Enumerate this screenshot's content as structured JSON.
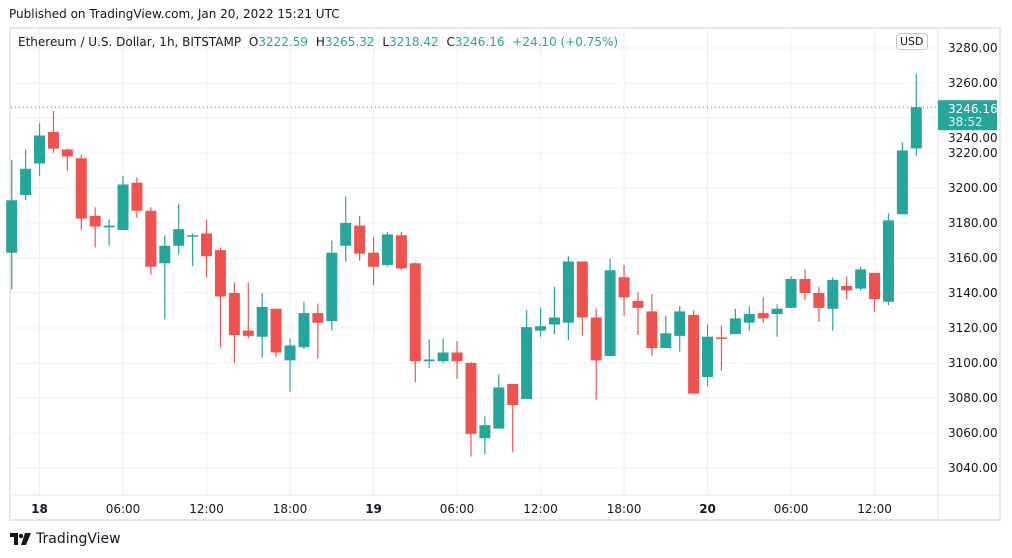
{
  "published": "Published on TradingView.com, Jan 20, 2022 15:21 UTC",
  "legend": {
    "symbol": "Ethereum / U.S. Dollar, 1h, BITSTAMP",
    "o_label": "O",
    "o": "3222.59",
    "h_label": "H",
    "h": "3265.32",
    "l_label": "L",
    "l": "3218.42",
    "c_label": "C",
    "c": "3246.16",
    "change": "+24.10 (+0.75%)"
  },
  "currency": "USD",
  "last_price": {
    "price": "3246.16",
    "countdown": "38:52"
  },
  "footer": {
    "brand": "TradingView"
  },
  "colors": {
    "up": "#26a69a",
    "down": "#ef5350",
    "grid": "#f0f0f3"
  },
  "chart_data": {
    "type": "candlestick",
    "title": "Ethereum / U.S. Dollar, 1h, BITSTAMP",
    "interval": "1h",
    "ylim": [
      3028,
      3292
    ],
    "price_ticks": [
      "3280.00",
      "3260.00",
      "3240.00",
      "3220.00",
      "3200.00",
      "3180.00",
      "3160.00",
      "3140.00",
      "3120.00",
      "3100.00",
      "3080.00",
      "3060.00",
      "3040.00"
    ],
    "time_ticks": [
      {
        "candle": 2,
        "label": "18",
        "day": true
      },
      {
        "candle": 8,
        "label": "06:00"
      },
      {
        "candle": 14,
        "label": "12:00"
      },
      {
        "candle": 20,
        "label": "18:00"
      },
      {
        "candle": 26,
        "label": "19",
        "day": true
      },
      {
        "candle": 32,
        "label": "06:00"
      },
      {
        "candle": 38,
        "label": "12:00"
      },
      {
        "candle": 44,
        "label": "18:00"
      },
      {
        "candle": 50,
        "label": "20",
        "day": true
      },
      {
        "candle": 56,
        "label": "06:00"
      },
      {
        "candle": 62,
        "label": "12:00"
      }
    ],
    "start": "Jan 17 22:00",
    "ohlc": [
      [
        3163,
        3216,
        3142,
        3193
      ],
      [
        3196,
        3222,
        3193,
        3211
      ],
      [
        3214,
        3237,
        3207,
        3230
      ],
      [
        3232,
        3244,
        3220,
        3222.5
      ],
      [
        3222,
        3222.5,
        3210,
        3218
      ],
      [
        3217,
        3219,
        3176,
        3182.5
      ],
      [
        3184,
        3189,
        3166,
        3178
      ],
      [
        3177.5,
        3182,
        3167,
        3178.5
      ],
      [
        3176,
        3207,
        3176,
        3202
      ],
      [
        3203,
        3206,
        3183,
        3187
      ],
      [
        3187,
        3189,
        3150.5,
        3155
      ],
      [
        3157,
        3173,
        3125,
        3167
      ],
      [
        3167,
        3191,
        3162,
        3176.5
      ],
      [
        3172.5,
        3174,
        3155.5,
        3173
      ],
      [
        3174,
        3182,
        3149,
        3161
      ],
      [
        3164.5,
        3166,
        3109,
        3138
      ],
      [
        3140,
        3146,
        3100,
        3116
      ],
      [
        3118.5,
        3146,
        3114,
        3115.5
      ],
      [
        3115,
        3140,
        3103,
        3132
      ],
      [
        3131,
        3131,
        3103.5,
        3106
      ],
      [
        3101.5,
        3114,
        3083.5,
        3110
      ],
      [
        3109,
        3135,
        3108,
        3128.5
      ],
      [
        3128.5,
        3134,
        3102.5,
        3123
      ],
      [
        3124,
        3170,
        3118.5,
        3163
      ],
      [
        3167,
        3195,
        3158,
        3180
      ],
      [
        3178.5,
        3184,
        3158.5,
        3162.5
      ],
      [
        3163,
        3172,
        3144.5,
        3155
      ],
      [
        3156,
        3175,
        3155,
        3173.5
      ],
      [
        3173,
        3175,
        3153,
        3154
      ],
      [
        3157,
        3157.5,
        3089,
        3101
      ],
      [
        3101,
        3113.5,
        3097,
        3102
      ],
      [
        3101,
        3114,
        3100,
        3106
      ],
      [
        3106,
        3112.5,
        3091,
        3101
      ],
      [
        3100,
        3100.5,
        3046.5,
        3059.5
      ],
      [
        3057,
        3069.5,
        3048,
        3064.5
      ],
      [
        3062.5,
        3093.5,
        3062.5,
        3086
      ],
      [
        3088,
        3088,
        3049,
        3076
      ],
      [
        3079.5,
        3130,
        3079.5,
        3120.5
      ],
      [
        3118.5,
        3131.5,
        3115,
        3121
      ],
      [
        3122,
        3143.5,
        3116.5,
        3126
      ],
      [
        3123,
        3161,
        3113,
        3158
      ],
      [
        3158,
        3158,
        3115.5,
        3126
      ],
      [
        3126,
        3131,
        3079,
        3101.5
      ],
      [
        3104,
        3159.5,
        3104,
        3153
      ],
      [
        3149,
        3156,
        3127,
        3137.5
      ],
      [
        3135.5,
        3140.5,
        3116,
        3131.5
      ],
      [
        3129.5,
        3139.5,
        3104,
        3108.5
      ],
      [
        3108.5,
        3127,
        3108.5,
        3117
      ],
      [
        3115.5,
        3132.5,
        3106.5,
        3129.5
      ],
      [
        3127.5,
        3130,
        3082.5,
        3082.5
      ],
      [
        3092,
        3122,
        3087,
        3115
      ],
      [
        3114.6,
        3121.5,
        3095.5,
        3114.4
      ],
      [
        3116.5,
        3131,
        3116.5,
        3125.5
      ],
      [
        3123,
        3132.5,
        3118.5,
        3128
      ],
      [
        3128.5,
        3137.5,
        3123,
        3125.5
      ],
      [
        3128,
        3133.5,
        3115,
        3131
      ],
      [
        3131.5,
        3149.5,
        3131.5,
        3148
      ],
      [
        3148,
        3153.5,
        3136,
        3140
      ],
      [
        3140,
        3143.5,
        3123.5,
        3131.5
      ],
      [
        3131,
        3149,
        3118.5,
        3147.5
      ],
      [
        3144,
        3149.5,
        3136.5,
        3141.5
      ],
      [
        3142.5,
        3155,
        3141.5,
        3153.5
      ],
      [
        3151.5,
        3151.5,
        3129,
        3136.5
      ],
      [
        3135,
        3185.5,
        3133,
        3181.5
      ],
      [
        3185,
        3226,
        3185,
        3221.5
      ],
      [
        3222.59,
        3265.32,
        3218.42,
        3246.16
      ]
    ]
  }
}
